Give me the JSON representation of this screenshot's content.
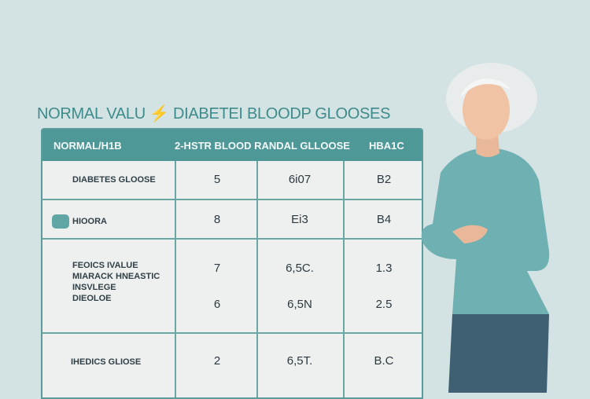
{
  "title": "NORMAL VALU ⚡ DIABETEI BLOODP GLOOSES",
  "table": {
    "headers": [
      "NORMAL/H1B",
      "2-HSTR BLOOD RANDAL GLLOOSE",
      "HBA1C"
    ],
    "rows": [
      {
        "label": "DIABETES GLOOSE",
        "values": [
          [
            "5"
          ],
          [
            "6i07"
          ],
          [
            "B2"
          ]
        ]
      },
      {
        "label": "HIOORA",
        "values": [
          [
            "8"
          ],
          [
            "Ei3"
          ],
          [
            "B4"
          ]
        ],
        "swatch_color": "#5fa6a5"
      },
      {
        "label_lines": [
          "FEOICS IVALUE",
          "MIARACK HNEASTIC",
          "INSVLEGE",
          "DIEOLOE"
        ],
        "values": [
          [
            "7",
            "6"
          ],
          [
            "6,5C.",
            "6,5N"
          ],
          [
            "1.3",
            "2.5"
          ]
        ]
      },
      {
        "label": "IHEDICS GLIOSE",
        "values": [
          [
            "2"
          ],
          [
            "6,5T."
          ],
          [
            "B.C"
          ]
        ]
      }
    ]
  },
  "colors": {
    "background": "#d3e2e2",
    "accent": "#4f9898",
    "sweater": "#6fb0b3"
  }
}
